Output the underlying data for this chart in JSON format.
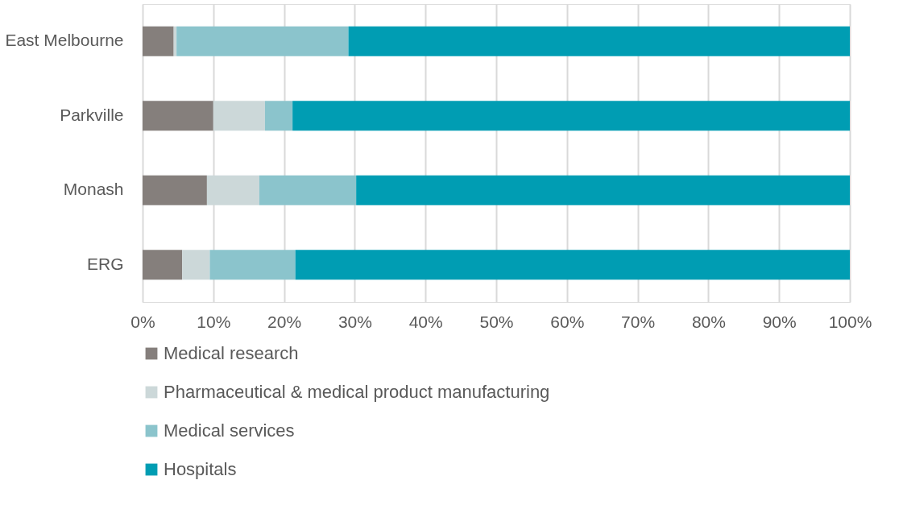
{
  "chart_data": {
    "type": "bar",
    "orientation": "horizontal",
    "stacked": true,
    "categories": [
      "East Melbourne",
      "Parkville",
      "Monash",
      "ERG"
    ],
    "series": [
      {
        "name": "Medical research",
        "color": "#857f7c",
        "values": [
          4.4,
          10.0,
          9.1,
          5.6
        ]
      },
      {
        "name": "Pharmaceutical & medical product manufacturing",
        "color": "#ccd8d9",
        "values": [
          0.4,
          7.3,
          7.4,
          3.9
        ]
      },
      {
        "name": "Medical services",
        "color": "#8bc4cc",
        "values": [
          24.3,
          3.9,
          13.7,
          12.1
        ]
      },
      {
        "name": "Hospitals",
        "color": "#009db3",
        "values": [
          70.9,
          78.8,
          69.8,
          78.4
        ]
      }
    ],
    "xlim": [
      0,
      100
    ],
    "xticks": [
      {
        "value": 0,
        "label": "0%"
      },
      {
        "value": 10,
        "label": "10%"
      },
      {
        "value": 20,
        "label": "20%"
      },
      {
        "value": 30,
        "label": "30%"
      },
      {
        "value": 40,
        "label": "40%"
      },
      {
        "value": 50,
        "label": "50%"
      },
      {
        "value": 60,
        "label": "60%"
      },
      {
        "value": 70,
        "label": "70%"
      },
      {
        "value": 80,
        "label": "80%"
      },
      {
        "value": 90,
        "label": "90%"
      },
      {
        "value": 100,
        "label": "100%"
      }
    ],
    "grid": "x",
    "legend": "bottom"
  }
}
